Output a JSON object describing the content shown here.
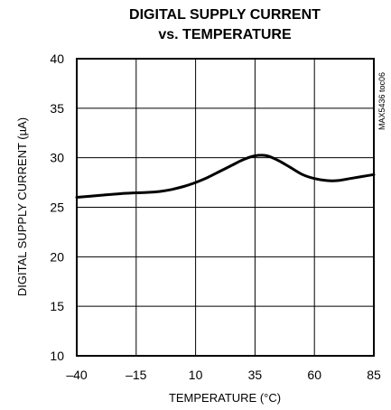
{
  "chart_data": {
    "type": "line",
    "title": [
      "DIGITAL SUPPLY CURRENT",
      "vs. TEMPERATURE"
    ],
    "xlabel": "TEMPERATURE (°C)",
    "ylabel": "DIGITAL SUPPLY CURRENT (µA)",
    "tag": "MAX5436 toc06",
    "xlim": [
      -40,
      85
    ],
    "ylim": [
      10,
      40
    ],
    "x_ticks": [
      -40,
      -15,
      10,
      35,
      60,
      85
    ],
    "y_ticks": [
      10,
      15,
      20,
      25,
      30,
      35,
      40
    ],
    "grid": true,
    "series": [
      {
        "x": [
          -40,
          -30,
          -20,
          -10,
          -5,
          0,
          5,
          10,
          15,
          20,
          25,
          30,
          35,
          40,
          45,
          50,
          55,
          60,
          65,
          70,
          75,
          80,
          85
        ],
        "y": [
          26.0,
          26.2,
          26.4,
          26.5,
          26.6,
          26.8,
          27.1,
          27.5,
          28.0,
          28.6,
          29.2,
          29.8,
          30.2,
          30.2,
          29.7,
          29.0,
          28.3,
          27.9,
          27.7,
          27.7,
          27.9,
          28.1,
          28.3
        ]
      }
    ]
  }
}
